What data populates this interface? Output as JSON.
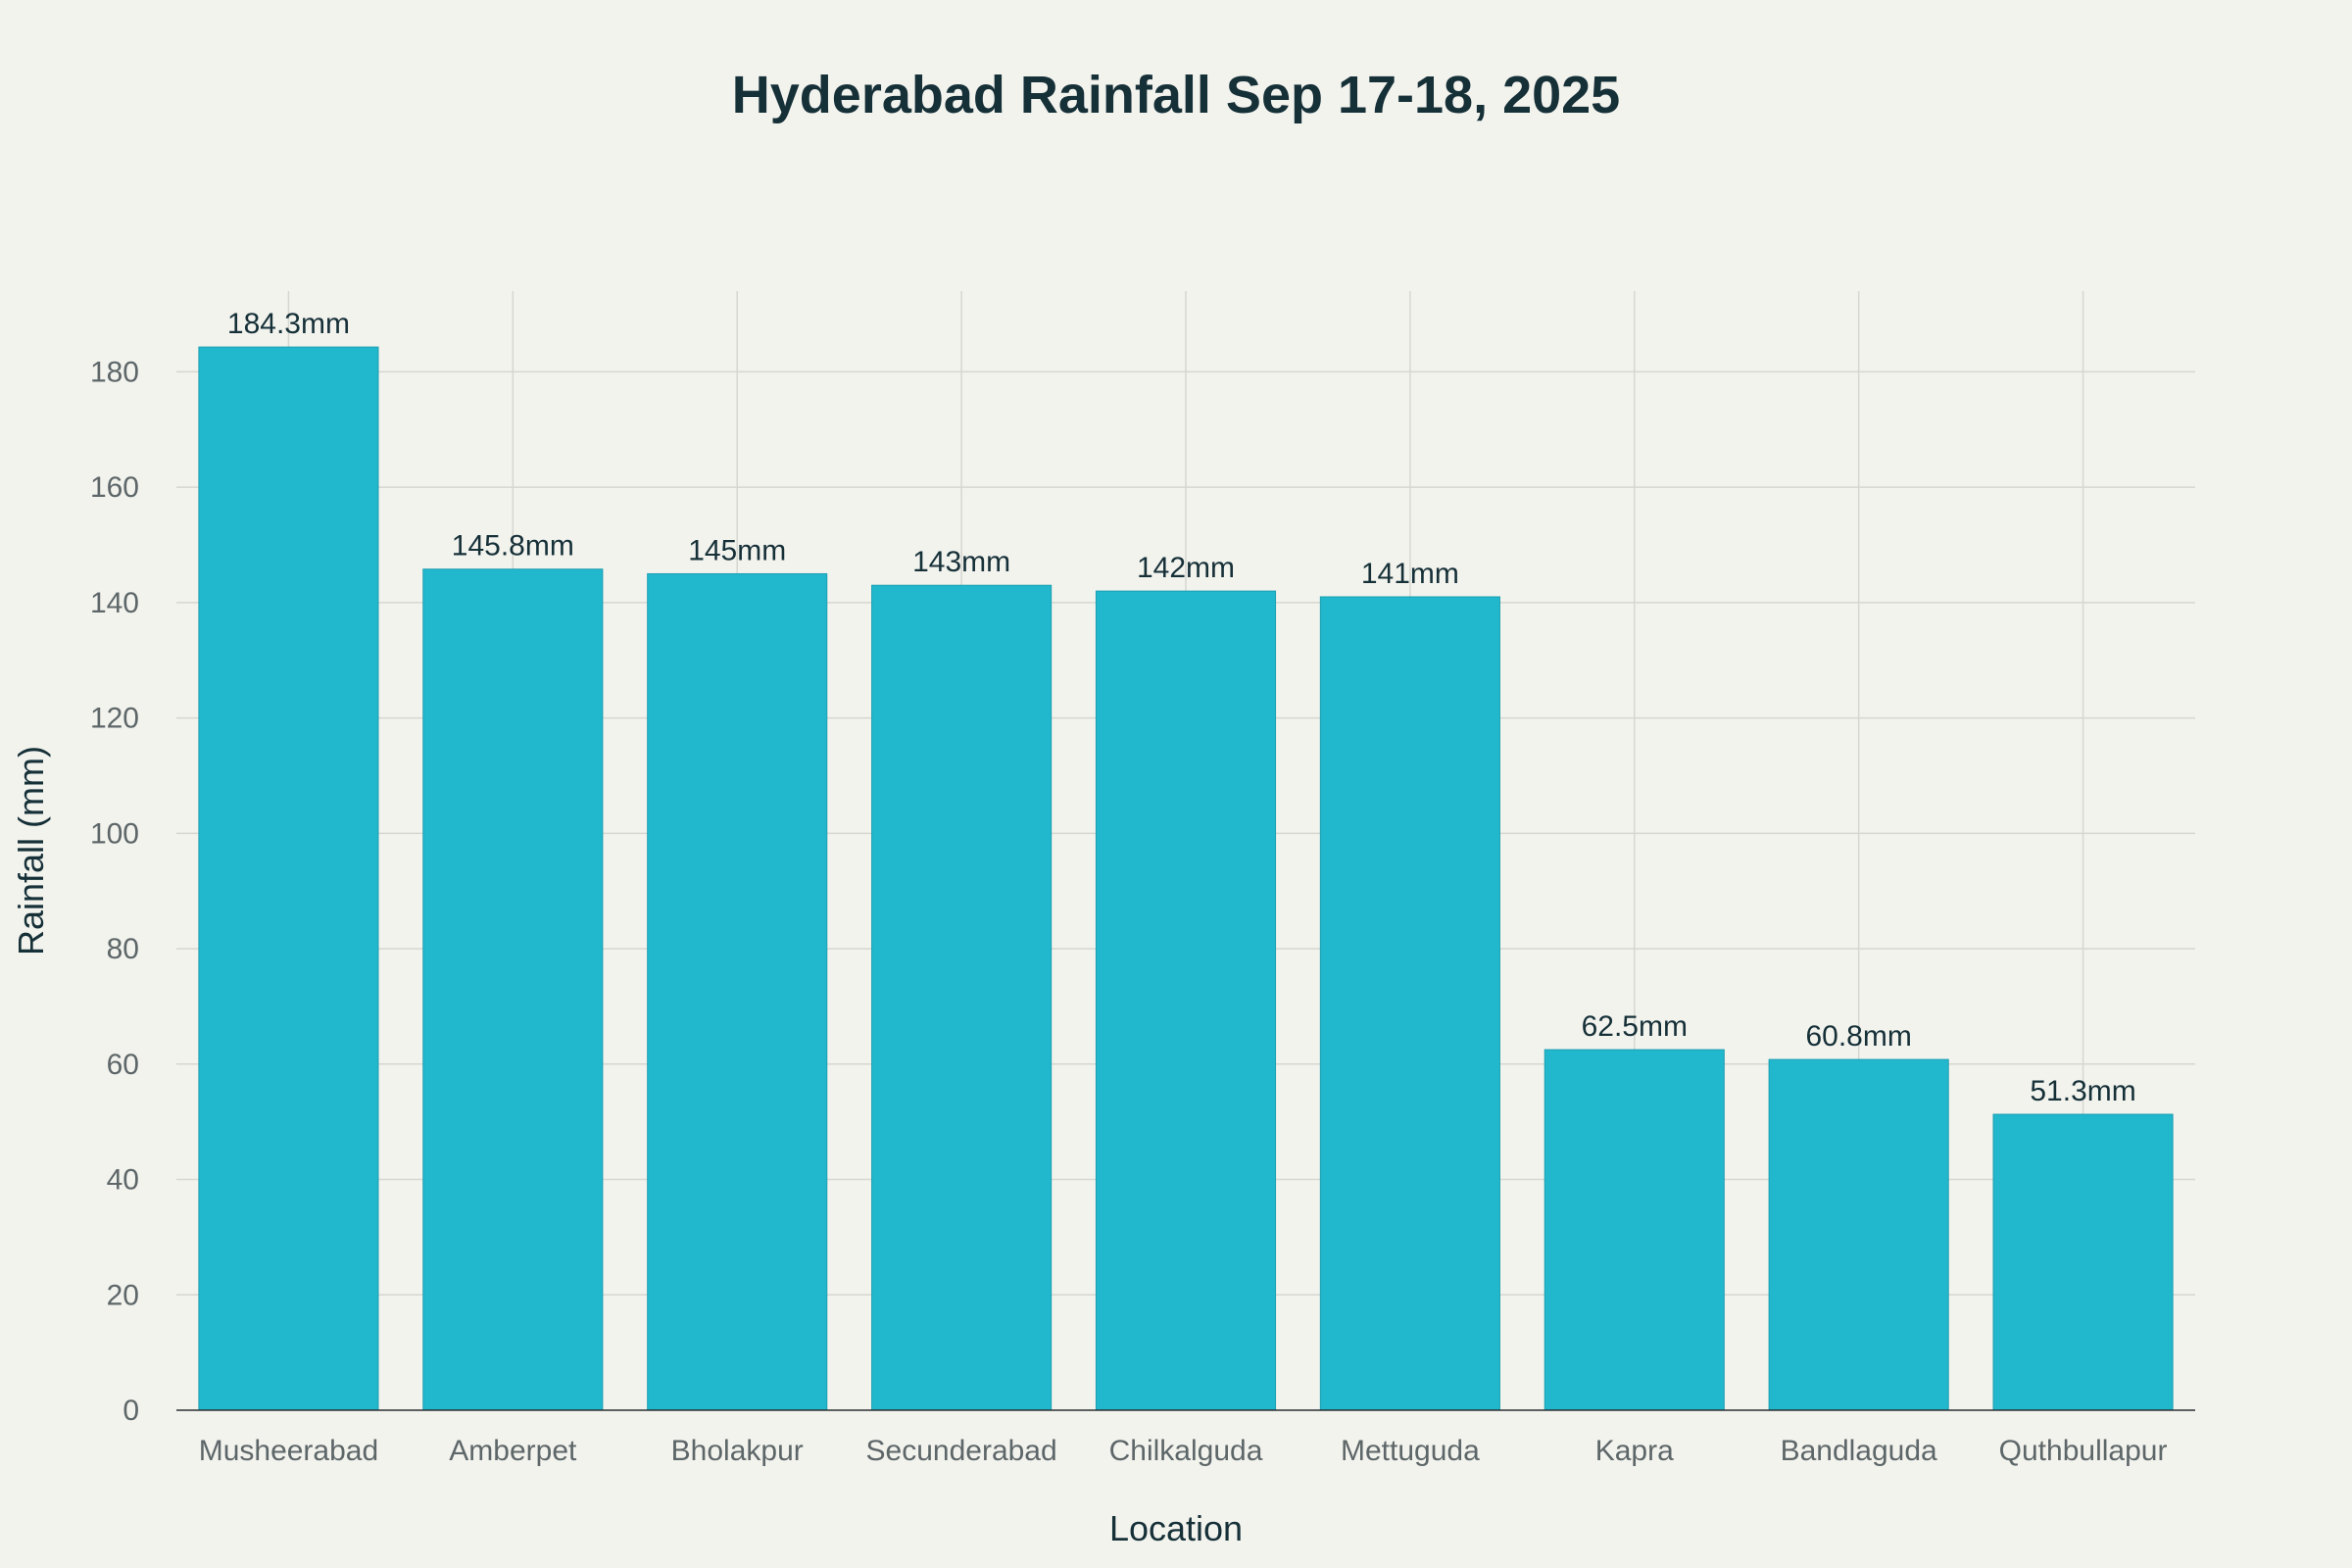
{
  "colors": {
    "background": "#f3f3ee",
    "bar": "#21b7cc",
    "bar_stroke": "#1d9fb1",
    "text": "#163038",
    "tick_text": "#5d6668",
    "grid": "#d6d7d1"
  },
  "chart_data": {
    "type": "bar",
    "title": "Hyderabad Rainfall Sep 17-18, 2025",
    "xlabel": "Location",
    "ylabel": "Rainfall (mm)",
    "categories": [
      "Musheerabad",
      "Amberpet",
      "Bholakpur",
      "Secunderabad",
      "Chilkalguda",
      "Mettuguda",
      "Kapra",
      "Bandlaguda",
      "Quthbullapur"
    ],
    "values": [
      184.3,
      145.8,
      145,
      143,
      142,
      141,
      62.5,
      60.8,
      51.3
    ],
    "data_labels": [
      "184.3mm",
      "145.8mm",
      "145mm",
      "143mm",
      "142mm",
      "141mm",
      "62.5mm",
      "60.8mm",
      "51.3mm"
    ],
    "y_ticks": [
      0,
      20,
      40,
      60,
      80,
      100,
      120,
      140,
      160,
      180
    ],
    "ylim": [
      0,
      194
    ],
    "grid": true,
    "legend": "none"
  }
}
